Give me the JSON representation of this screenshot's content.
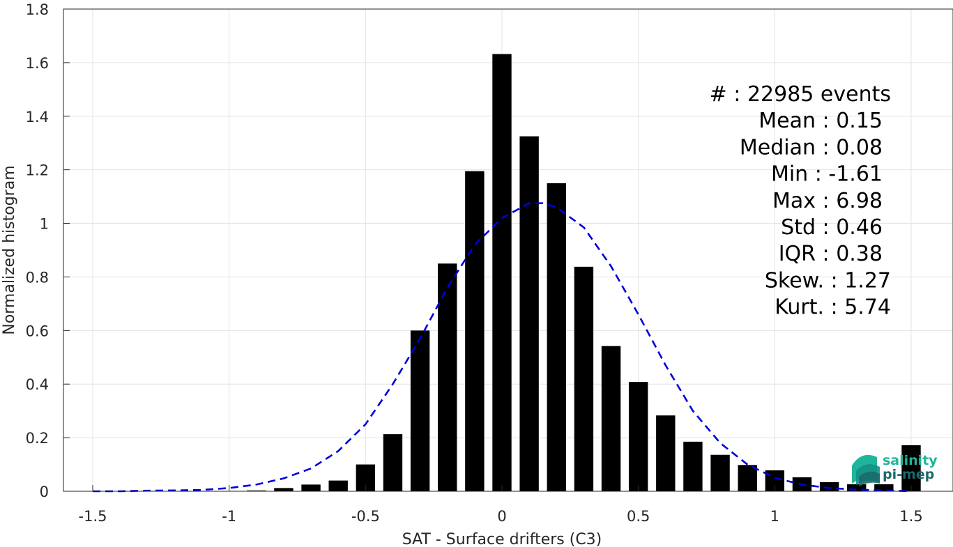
{
  "chart_data": {
    "type": "bar",
    "title": "",
    "xlabel": "SAT - Surface drifters (C3)",
    "ylabel": "Normalized histogram",
    "xlim": [
      -1.6,
      1.6
    ],
    "ylim": [
      0,
      1.8
    ],
    "grid": true,
    "x_ticks": [
      "-1.5",
      "-1",
      "-0.5",
      "0",
      "0.5",
      "1",
      "1.5"
    ],
    "x_tick_values": [
      -1.5,
      -1,
      -0.5,
      0,
      0.5,
      1,
      1.5
    ],
    "y_ticks": [
      "0",
      "0.2",
      "0.4",
      "0.6",
      "0.8",
      "1",
      "1.2",
      "1.4",
      "1.6",
      "1.8"
    ],
    "y_tick_values": [
      0,
      0.2,
      0.4,
      0.6,
      0.8,
      1.0,
      1.2,
      1.4,
      1.6,
      1.8
    ],
    "bar_width": 0.07,
    "bars": {
      "x": [
        -1.5,
        -1.4,
        -1.3,
        -1.2,
        -1.1,
        -1.0,
        -0.9,
        -0.8,
        -0.7,
        -0.6,
        -0.5,
        -0.4,
        -0.3,
        -0.2,
        -0.1,
        0.0,
        0.1,
        0.2,
        0.3,
        0.4,
        0.5,
        0.6,
        0.7,
        0.8,
        0.9,
        1.0,
        1.1,
        1.2,
        1.3,
        1.4,
        1.5
      ],
      "values": [
        0.0,
        0.0,
        0.0,
        0.0,
        0.0,
        0.0,
        0.003,
        0.012,
        0.025,
        0.04,
        0.1,
        0.213,
        0.6,
        0.85,
        1.195,
        1.632,
        1.325,
        1.15,
        0.838,
        0.542,
        0.408,
        0.283,
        0.185,
        0.136,
        0.098,
        0.078,
        0.052,
        0.034,
        0.026,
        0.026,
        0.172
      ],
      "color": "#000000"
    },
    "fit_curve": {
      "style": "dashed",
      "color": "#0000dd",
      "x": [
        -1.5,
        -1.4,
        -1.3,
        -1.2,
        -1.1,
        -1.0,
        -0.9,
        -0.8,
        -0.7,
        -0.6,
        -0.5,
        -0.4,
        -0.3,
        -0.2,
        -0.1,
        0.0,
        0.1,
        0.15,
        0.2,
        0.3,
        0.4,
        0.5,
        0.6,
        0.7,
        0.8,
        0.9,
        1.0,
        1.1,
        1.2,
        1.3,
        1.4,
        1.5
      ],
      "y": [
        0.0,
        0.0,
        0.002,
        0.003,
        0.005,
        0.012,
        0.025,
        0.048,
        0.085,
        0.15,
        0.25,
        0.4,
        0.57,
        0.76,
        0.92,
        1.02,
        1.075,
        1.075,
        1.06,
        0.985,
        0.84,
        0.66,
        0.47,
        0.3,
        0.18,
        0.1,
        0.05,
        0.025,
        0.012,
        0.006,
        0.003,
        0.0
      ]
    }
  },
  "stats": [
    {
      "label": "#  : 22985 events",
      "right": false
    },
    {
      "label": "Mean : 0.15",
      "right": true
    },
    {
      "label": "Median : 0.08",
      "right": true
    },
    {
      "label": "Min : -1.61",
      "right": true
    },
    {
      "label": "Max : 6.98",
      "right": true
    },
    {
      "label": "Std : 0.46",
      "right": true
    },
    {
      "label": "IQR : 0.38",
      "right": true
    },
    {
      "label": "Skew. : 1.27",
      "right": false
    },
    {
      "label": "Kurt. : 5.74",
      "right": false
    }
  ],
  "logo": {
    "line1": "salinity",
    "line2": "pi-mep",
    "color1": "#1fb59a",
    "color2": "#1a6b6b"
  }
}
